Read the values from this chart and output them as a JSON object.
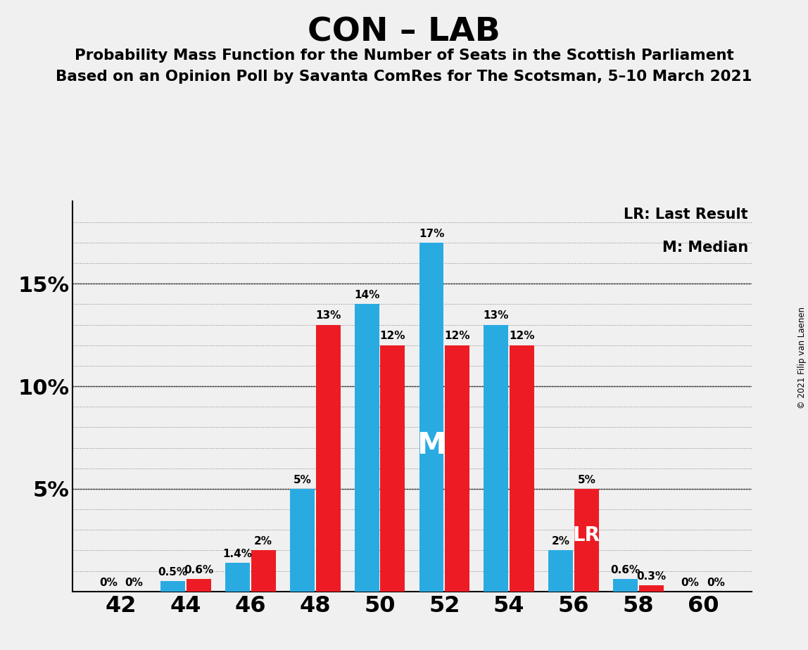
{
  "title": "CON – LAB",
  "subtitle1": "Probability Mass Function for the Number of Seats in the Scottish Parliament",
  "subtitle2": "Based on an Opinion Poll by Savanta ComRes for The Scotsman, 5–10 March 2021",
  "copyright": "© 2021 Filip van Laenen",
  "legend_lr": "LR: Last Result",
  "legend_m": "M: Median",
  "categories": [
    42,
    44,
    46,
    48,
    50,
    52,
    54,
    56,
    58,
    60
  ],
  "blue_values": [
    0.0,
    0.5,
    1.4,
    5.0,
    14.0,
    17.0,
    13.0,
    2.0,
    0.6,
    0.0
  ],
  "red_values": [
    0.0,
    0.6,
    2.0,
    13.0,
    12.0,
    12.0,
    12.0,
    5.0,
    0.3,
    0.0
  ],
  "blue_labels": [
    "0%",
    "0.5%",
    "1.4%",
    "5%",
    "14%",
    "17%",
    "13%",
    "2%",
    "0.6%",
    "0%"
  ],
  "red_labels": [
    "0%",
    "0.6%",
    "2%",
    "13%",
    "12%",
    "12%",
    "12%",
    "5%",
    "0.3%",
    "0%"
  ],
  "blue_color": "#29ABE2",
  "red_color": "#ED1C24",
  "background_color": "#F0F0F0",
  "ylim": [
    0,
    19
  ],
  "yticks": [
    0,
    5,
    10,
    15
  ],
  "ytick_labels": [
    "",
    "5%",
    "10%",
    "15%"
  ],
  "median_seat": 52,
  "lr_seat": 56,
  "bar_width": 0.38,
  "bar_gap": 0.4
}
